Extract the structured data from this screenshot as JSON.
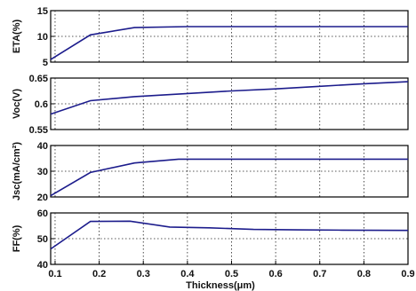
{
  "chart_data": [
    {
      "type": "line",
      "ylabel": "ETA(%)",
      "ylim": [
        5,
        15
      ],
      "yticks": [
        "5",
        "10",
        "15"
      ],
      "xlim": [
        0.09,
        0.9
      ],
      "grid": true,
      "line_color": "#1c1c8c",
      "series": [
        {
          "x": [
            0.09,
            0.18,
            0.28,
            0.4,
            0.5,
            0.6,
            0.7,
            0.8,
            0.9
          ],
          "values": [
            5.5,
            10.3,
            11.7,
            11.9,
            11.9,
            11.9,
            11.9,
            11.9,
            11.9
          ]
        }
      ]
    },
    {
      "type": "line",
      "ylabel": "Voc(V)",
      "ylim": [
        0.55,
        0.65
      ],
      "yticks": [
        "0.55",
        "0.6",
        "0.65"
      ],
      "xlim": [
        0.09,
        0.9
      ],
      "grid": true,
      "line_color": "#1c1c8c",
      "series": [
        {
          "x": [
            0.09,
            0.18,
            0.28,
            0.4,
            0.5,
            0.6,
            0.7,
            0.8,
            0.9
          ],
          "values": [
            0.58,
            0.606,
            0.614,
            0.62,
            0.625,
            0.629,
            0.634,
            0.639,
            0.643
          ]
        }
      ]
    },
    {
      "type": "line",
      "ylabel": "Jsc(mA/cm²)",
      "ylim": [
        20,
        40
      ],
      "yticks": [
        "20",
        "30",
        "40"
      ],
      "xlim": [
        0.09,
        0.9
      ],
      "grid": true,
      "line_color": "#1c1c8c",
      "series": [
        {
          "x": [
            0.09,
            0.18,
            0.28,
            0.38,
            0.5,
            0.6,
            0.7,
            0.8,
            0.9
          ],
          "values": [
            20.5,
            29.5,
            33.2,
            34.7,
            34.7,
            34.7,
            34.7,
            34.7,
            34.7
          ]
        }
      ]
    },
    {
      "type": "line",
      "ylabel": "FF(%)",
      "ylim": [
        40,
        60
      ],
      "yticks": [
        "40",
        "50",
        "60"
      ],
      "xlim": [
        0.09,
        0.9
      ],
      "xticks": [
        "0.1",
        "0.2",
        "0.3",
        "0.4",
        "0.5",
        "0.6",
        "0.7",
        "0.8",
        "0.9"
      ],
      "xlabel": "Thickness(μm)",
      "grid": true,
      "line_color": "#1c1c8c",
      "series": [
        {
          "x": [
            0.09,
            0.18,
            0.27,
            0.36,
            0.45,
            0.55,
            0.65,
            0.75,
            0.9
          ],
          "values": [
            46,
            56.7,
            56.8,
            54.5,
            54.2,
            53.6,
            53.4,
            53.3,
            53.2
          ]
        }
      ]
    }
  ]
}
